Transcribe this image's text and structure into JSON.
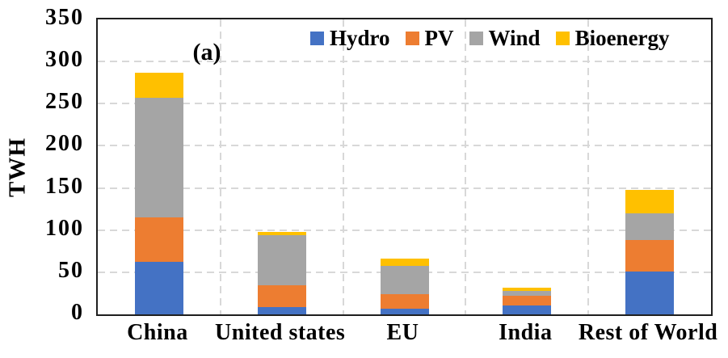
{
  "chart_data": {
    "type": "bar",
    "stacked": true,
    "panel_label": "(a)",
    "ylabel": "TWH",
    "ylim": [
      0,
      350
    ],
    "yticks": [
      0,
      50,
      100,
      150,
      200,
      250,
      300,
      350
    ],
    "categories": [
      "China",
      "United states",
      "EU",
      "India",
      "Rest of World"
    ],
    "series": [
      {
        "name": "Hydro",
        "color": "#4472C4",
        "values": [
          62,
          9,
          7,
          11,
          51
        ]
      },
      {
        "name": "PV",
        "color": "#ED7D31",
        "values": [
          53,
          26,
          17,
          11,
          37
        ]
      },
      {
        "name": "Wind",
        "color": "#A5A5A5",
        "values": [
          142,
          59,
          34,
          6,
          32
        ]
      },
      {
        "name": "Bioenergy",
        "color": "#FFC000",
        "values": [
          30,
          4,
          8,
          4,
          28
        ]
      }
    ],
    "totals": [
      287,
      98,
      66,
      32,
      148
    ],
    "legend_position": "top",
    "grid": {
      "horizontal": true,
      "vertical": true,
      "style": "dashed",
      "color": "#D8D8D8"
    },
    "frame_color": "#1F1F1F"
  }
}
